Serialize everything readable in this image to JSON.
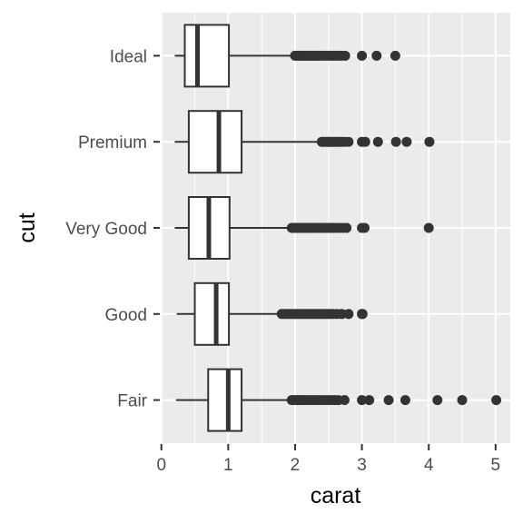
{
  "chart_data": {
    "type": "boxplot",
    "orientation": "horizontal",
    "title": "",
    "xlabel": "carat",
    "ylabel": "cut",
    "xlim": [
      -0.01,
      5.22
    ],
    "xticks": [
      0,
      1,
      2,
      3,
      4,
      5
    ],
    "xtick_labels": [
      "0",
      "1",
      "2",
      "3",
      "4",
      "5"
    ],
    "grid": true,
    "panel_background": "#ebebeb",
    "grid_color": "#ffffff",
    "box_fill": "#ffffff",
    "line_color": "#333333",
    "categories": [
      "Ideal",
      "Premium",
      "Very Good",
      "Good",
      "Fair"
    ],
    "boxes": [
      {
        "category": "Ideal",
        "whisker_low": 0.2,
        "q1": 0.35,
        "median": 0.54,
        "q3": 1.01,
        "whisker_high": 1.99,
        "outliers": [
          2.0,
          2.02,
          2.05,
          2.08,
          2.1,
          2.12,
          2.15,
          2.18,
          2.2,
          2.22,
          2.25,
          2.28,
          2.3,
          2.33,
          2.36,
          2.4,
          2.43,
          2.46,
          2.5,
          2.54,
          2.58,
          2.62,
          2.66,
          2.7,
          2.75,
          3.0,
          3.22,
          3.5
        ]
      },
      {
        "category": "Premium",
        "whisker_low": 0.2,
        "q1": 0.41,
        "median": 0.86,
        "q3": 1.2,
        "whisker_high": 2.38,
        "outliers": [
          2.4,
          2.42,
          2.45,
          2.48,
          2.5,
          2.52,
          2.55,
          2.58,
          2.6,
          2.63,
          2.66,
          2.7,
          2.74,
          2.8,
          3.0,
          3.05,
          3.24,
          3.51,
          3.67,
          4.01
        ]
      },
      {
        "category": "Very Good",
        "whisker_low": 0.2,
        "q1": 0.41,
        "median": 0.71,
        "q3": 1.02,
        "whisker_high": 1.93,
        "outliers": [
          1.95,
          1.98,
          2.0,
          2.03,
          2.06,
          2.09,
          2.12,
          2.15,
          2.18,
          2.21,
          2.24,
          2.27,
          2.3,
          2.34,
          2.38,
          2.42,
          2.46,
          2.5,
          2.54,
          2.58,
          2.62,
          2.67,
          2.72,
          2.77,
          3.0,
          3.04,
          4.0
        ]
      },
      {
        "category": "Good",
        "whisker_low": 0.23,
        "q1": 0.5,
        "median": 0.82,
        "q3": 1.01,
        "whisker_high": 1.77,
        "outliers": [
          1.8,
          1.84,
          1.88,
          1.92,
          1.96,
          2.0,
          2.04,
          2.08,
          2.12,
          2.16,
          2.2,
          2.24,
          2.28,
          2.32,
          2.36,
          2.4,
          2.44,
          2.48,
          2.52,
          2.57,
          2.63,
          2.7,
          2.8,
          3.0,
          3.01
        ]
      },
      {
        "category": "Fair",
        "whisker_low": 0.22,
        "q1": 0.7,
        "median": 1.0,
        "q3": 1.2,
        "whisker_high": 1.94,
        "outliers": [
          1.95,
          1.98,
          2.01,
          2.04,
          2.07,
          2.1,
          2.13,
          2.16,
          2.2,
          2.24,
          2.28,
          2.32,
          2.36,
          2.4,
          2.45,
          2.5,
          2.55,
          2.6,
          2.65,
          2.74,
          3.0,
          3.11,
          3.4,
          3.65,
          4.13,
          4.5,
          5.01
        ]
      }
    ]
  }
}
